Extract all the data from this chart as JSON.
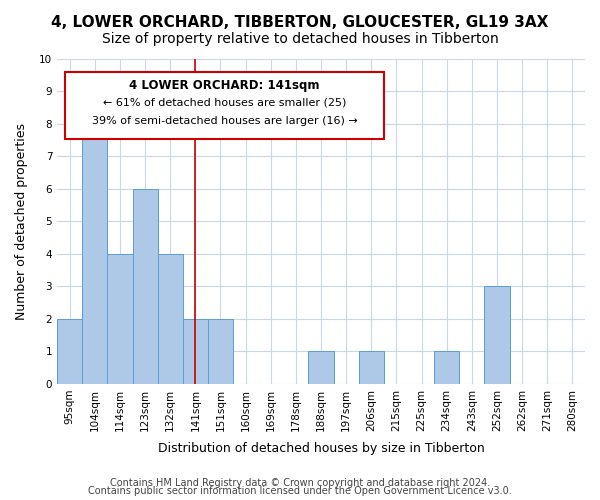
{
  "title": "4, LOWER ORCHARD, TIBBERTON, GLOUCESTER, GL19 3AX",
  "subtitle": "Size of property relative to detached houses in Tibberton",
  "xlabel": "Distribution of detached houses by size in Tibberton",
  "ylabel": "Number of detached properties",
  "bar_labels": [
    "95sqm",
    "104sqm",
    "114sqm",
    "123sqm",
    "132sqm",
    "141sqm",
    "151sqm",
    "160sqm",
    "169sqm",
    "178sqm",
    "188sqm",
    "197sqm",
    "206sqm",
    "215sqm",
    "225sqm",
    "234sqm",
    "243sqm",
    "252sqm",
    "262sqm",
    "271sqm",
    "280sqm"
  ],
  "bar_values": [
    2,
    8,
    4,
    6,
    4,
    2,
    2,
    0,
    0,
    0,
    1,
    0,
    1,
    0,
    0,
    1,
    0,
    3,
    0,
    0,
    0
  ],
  "bar_color": "#aec8e8",
  "bar_edge_color": "#5a9fd4",
  "highlight_index": 5,
  "highlight_line_color": "#cc0000",
  "annotation_title": "4 LOWER ORCHARD: 141sqm",
  "annotation_line1": "← 61% of detached houses are smaller (25)",
  "annotation_line2": "39% of semi-detached houses are larger (16) →",
  "annotation_box_color": "#cc0000",
  "ylim": [
    0,
    10
  ],
  "yticks": [
    0,
    1,
    2,
    3,
    4,
    5,
    6,
    7,
    8,
    9,
    10
  ],
  "footer1": "Contains HM Land Registry data © Crown copyright and database right 2024.",
  "footer2": "Contains public sector information licensed under the Open Government Licence v3.0.",
  "bg_color": "#ffffff",
  "grid_color": "#c8d8e8",
  "title_fontsize": 11,
  "subtitle_fontsize": 10,
  "axis_label_fontsize": 9,
  "tick_fontsize": 7.5,
  "annotation_fontsize": 8.5,
  "footer_fontsize": 7
}
